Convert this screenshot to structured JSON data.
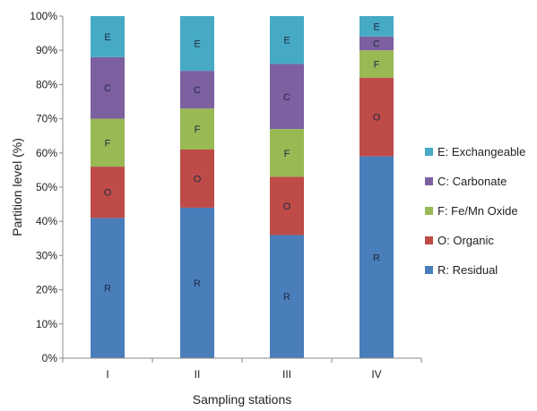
{
  "chart_data": {
    "type": "bar",
    "stacked": true,
    "categories": [
      "I",
      "II",
      "III",
      "IV"
    ],
    "xlabel": "Sampling stations",
    "ylabel": "Partition level (%)",
    "ylim": [
      0,
      100
    ],
    "yticks": [
      "0%",
      "10%",
      "20%",
      "30%",
      "40%",
      "50%",
      "60%",
      "70%",
      "80%",
      "90%",
      "100%"
    ],
    "grid": false,
    "legend_position": "right",
    "series": [
      {
        "name": "R: Residual",
        "label": "R",
        "color": "#4a7ebb",
        "values": [
          41,
          44,
          36,
          59
        ]
      },
      {
        "name": "O: Organic",
        "label": "O",
        "color": "#be4b48",
        "values": [
          15,
          17,
          17,
          23
        ]
      },
      {
        "name": "F: Fe/Mn Oxide",
        "label": "F",
        "color": "#98b954",
        "values": [
          14,
          12,
          14,
          8
        ]
      },
      {
        "name": "C: Carbonate",
        "label": "C",
        "color": "#7d60a0",
        "values": [
          18,
          11,
          19,
          4
        ]
      },
      {
        "name": "E: Exchangeable",
        "label": "E",
        "color": "#46aac5",
        "values": [
          12,
          16,
          14,
          6
        ]
      }
    ]
  }
}
